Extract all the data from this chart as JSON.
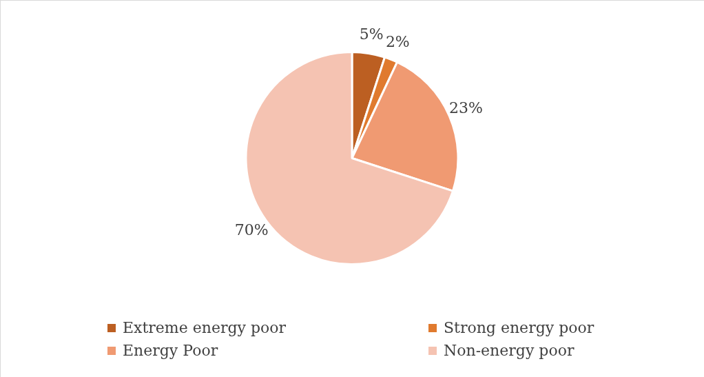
{
  "chart_data": {
    "type": "pie",
    "categories": [
      "Extreme energy poor",
      "Strong energy poor",
      "Energy Poor",
      "Non-energy poor"
    ],
    "values": [
      5,
      2,
      23,
      70
    ],
    "colors": [
      "#bc5f22",
      "#e07a2e",
      "#f09a72",
      "#f5c3b2"
    ],
    "value_labels": [
      "5%",
      "2%",
      "23%",
      "70%"
    ],
    "legend": "bottom"
  }
}
